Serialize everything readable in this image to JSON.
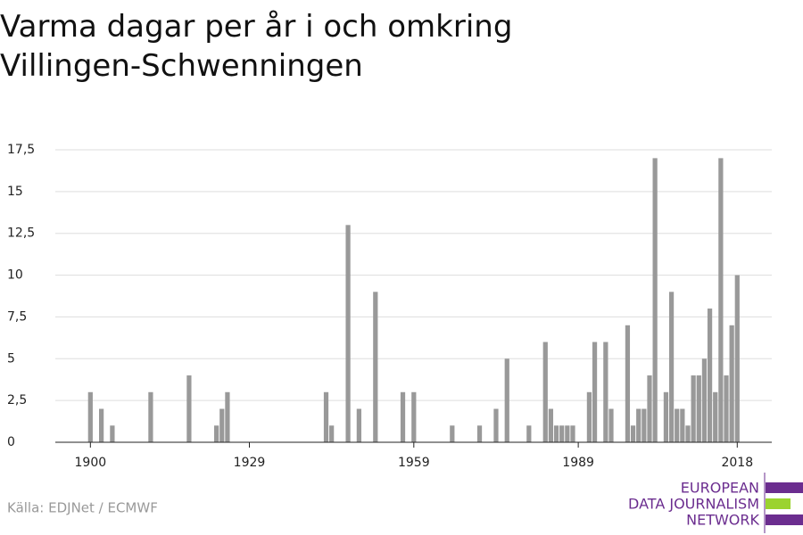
{
  "chart_data": {
    "type": "bar",
    "title": "Varma dagar per år i och omkring Villingen-Schwenningen",
    "source": "Källa: EDJNet / ECMWF",
    "logo": [
      "EUROPEAN",
      "DATA JOURNALISM",
      "NETWORK"
    ],
    "color": "#999999",
    "grid": true,
    "x": [
      1900,
      1901,
      1902,
      1903,
      1904,
      1905,
      1906,
      1907,
      1908,
      1909,
      1910,
      1911,
      1912,
      1913,
      1914,
      1915,
      1916,
      1917,
      1918,
      1919,
      1920,
      1921,
      1922,
      1923,
      1924,
      1925,
      1926,
      1927,
      1928,
      1929,
      1930,
      1931,
      1932,
      1933,
      1934,
      1935,
      1936,
      1937,
      1938,
      1939,
      1940,
      1941,
      1942,
      1943,
      1944,
      1945,
      1946,
      1947,
      1948,
      1949,
      1950,
      1951,
      1952,
      1953,
      1954,
      1955,
      1956,
      1957,
      1958,
      1959,
      1960,
      1961,
      1962,
      1963,
      1964,
      1965,
      1966,
      1967,
      1968,
      1969,
      1970,
      1971,
      1972,
      1973,
      1974,
      1975,
      1976,
      1977,
      1978,
      1979,
      1980,
      1981,
      1982,
      1983,
      1984,
      1985,
      1986,
      1987,
      1988,
      1989,
      1990,
      1991,
      1992,
      1993,
      1994,
      1995,
      1996,
      1997,
      1998,
      1999,
      2000,
      2001,
      2002,
      2003,
      2004,
      2005,
      2006,
      2007,
      2008,
      2009,
      2010,
      2011,
      2012,
      2013,
      2014,
      2015,
      2016,
      2017,
      2018
    ],
    "values": [
      3,
      0,
      2,
      0,
      1,
      0,
      0,
      0,
      0,
      0,
      0,
      3,
      0,
      0,
      0,
      0,
      0,
      0,
      4,
      0,
      0,
      0,
      0,
      1,
      2,
      3,
      0,
      0,
      0,
      0,
      0,
      0,
      0,
      0,
      0,
      0,
      0,
      0,
      0,
      0,
      0,
      0,
      0,
      3,
      1,
      0,
      0,
      13,
      0,
      2,
      0,
      0,
      9,
      0,
      0,
      0,
      0,
      3,
      0,
      3,
      0,
      0,
      0,
      0,
      0,
      0,
      1,
      0,
      0,
      0,
      0,
      1,
      0,
      0,
      2,
      0,
      5,
      0,
      0,
      0,
      1,
      0,
      0,
      6,
      2,
      1,
      1,
      1,
      1,
      0,
      0,
      3,
      6,
      0,
      6,
      2,
      0,
      0,
      7,
      1,
      2,
      2,
      4,
      17,
      0,
      3,
      9,
      2,
      2,
      1,
      4,
      4,
      5,
      8,
      3,
      17,
      4,
      7,
      10
    ],
    "xlim": [
      1893.6,
      2024.3
    ],
    "xticks": [
      1900,
      1929,
      1959,
      1989,
      2018
    ],
    "ylim": [
      0,
      17.5
    ],
    "yticks": [
      0,
      {
        "value": 2.5,
        "label": "2,5"
      },
      5,
      {
        "value": 7.5,
        "label": "7,5"
      },
      10,
      {
        "value": 12.5,
        "label": "12,5"
      },
      15,
      {
        "value": 17.5,
        "label": "17,5"
      }
    ]
  }
}
